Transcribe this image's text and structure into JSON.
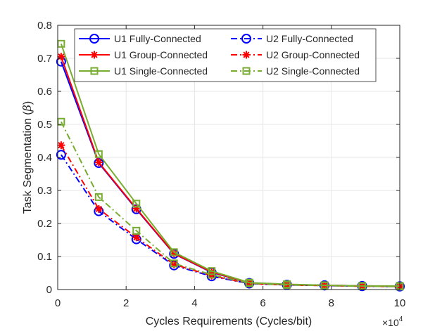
{
  "chart_data": {
    "type": "line",
    "title": "",
    "xlabel": "Cycles Requirements (Cycles/bit)",
    "ylabel": "Task Segmentation (",
    "ylabel_symbol": "β",
    "ylabel_close": ")",
    "x_multiplier_base": "×10",
    "x_multiplier_exp": "4",
    "xlim": [
      0,
      10
    ],
    "ylim": [
      0,
      0.8
    ],
    "grid": true,
    "legend_position": "top-right",
    "x_ticks": [
      0,
      2,
      4,
      6,
      8,
      10
    ],
    "y_ticks": [
      0,
      0.1,
      0.2,
      0.3,
      0.4,
      0.5,
      0.6,
      0.7,
      0.8
    ],
    "x": [
      0.1,
      1.2,
      2.3,
      3.4,
      4.5,
      5.6,
      6.7,
      7.8,
      8.9,
      10
    ],
    "series": [
      {
        "name": "U1 Fully-Connected",
        "color": "#0000ff",
        "dash": "solid",
        "marker": "circle",
        "values": [
          0.69,
          0.383,
          0.243,
          0.108,
          0.052,
          0.02,
          0.015,
          0.013,
          0.011,
          0.01
        ]
      },
      {
        "name": "U2 Fully-Connected",
        "color": "#0000ff",
        "dash": "dashdot",
        "marker": "circle",
        "values": [
          0.408,
          0.237,
          0.152,
          0.073,
          0.04,
          0.018,
          0.014,
          0.012,
          0.01,
          0.009
        ]
      },
      {
        "name": "U1 Group-Connected",
        "color": "#ff0000",
        "dash": "solid",
        "marker": "star",
        "values": [
          0.705,
          0.385,
          0.245,
          0.109,
          0.053,
          0.02,
          0.015,
          0.013,
          0.011,
          0.01
        ]
      },
      {
        "name": "U2 Group-Connected",
        "color": "#ff0000",
        "dash": "dashdot",
        "marker": "star",
        "values": [
          0.437,
          0.244,
          0.158,
          0.076,
          0.042,
          0.018,
          0.014,
          0.012,
          0.01,
          0.009
        ]
      },
      {
        "name": "U1 Single-Connected",
        "color": "#77ac30",
        "dash": "solid",
        "marker": "square",
        "values": [
          0.744,
          0.41,
          0.26,
          0.113,
          0.056,
          0.021,
          0.016,
          0.013,
          0.011,
          0.011
        ]
      },
      {
        "name": "U2 Single-Connected",
        "color": "#77ac30",
        "dash": "dashdot",
        "marker": "square",
        "values": [
          0.508,
          0.28,
          0.178,
          0.079,
          0.045,
          0.019,
          0.014,
          0.012,
          0.01,
          0.009
        ]
      }
    ]
  }
}
